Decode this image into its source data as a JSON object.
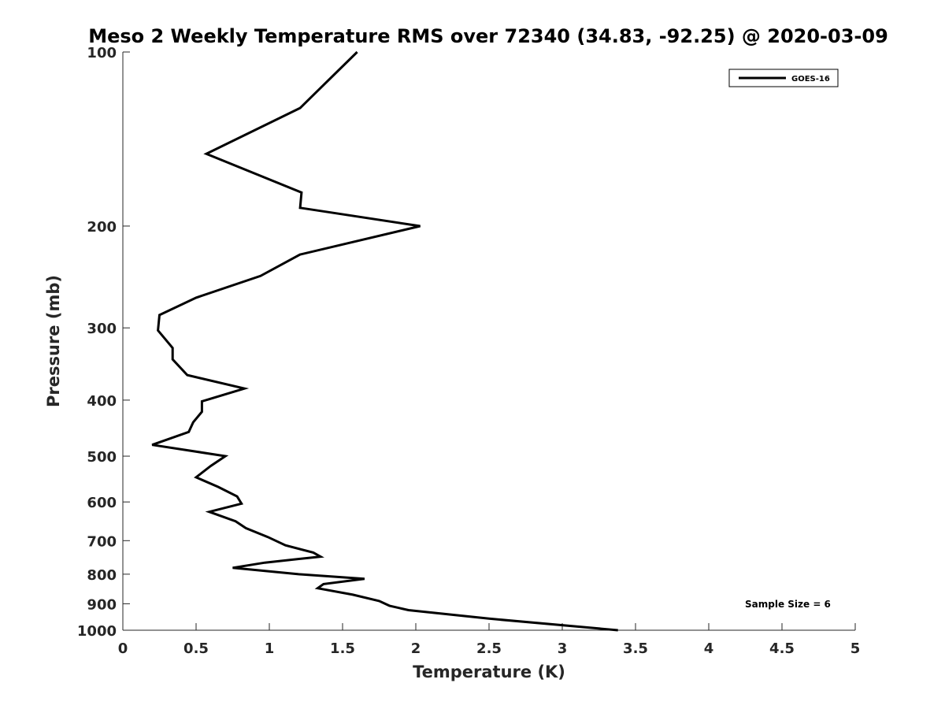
{
  "chart_data": {
    "type": "line",
    "title": "Meso 2 Weekly Temperature RMS over 72340 (34.83, -92.25) @ 2020-03-09",
    "xlabel": "Temperature (K)",
    "ylabel": "Pressure (mb)",
    "xlim": [
      0,
      5
    ],
    "ylim": [
      100,
      1000
    ],
    "y_scale": "log",
    "y_reversed": true,
    "x_ticks": [
      "0",
      "0.5",
      "1",
      "1.5",
      "2",
      "2.5",
      "3",
      "3.5",
      "4",
      "4.5",
      "5"
    ],
    "x_tick_values": [
      0,
      0.5,
      1,
      1.5,
      2,
      2.5,
      3,
      3.5,
      4,
      4.5,
      5
    ],
    "y_ticks": [
      "100",
      "200",
      "300",
      "400",
      "500",
      "600",
      "700",
      "800",
      "900",
      "1000"
    ],
    "y_tick_values": [
      100,
      200,
      300,
      400,
      500,
      600,
      700,
      800,
      900,
      1000
    ],
    "grid": false,
    "legend_position": "top-right",
    "series": [
      {
        "name": "GOES-16",
        "color": "#000000",
        "points": [
          [
            1.6,
            100
          ],
          [
            1.21,
            125
          ],
          [
            0.57,
            150
          ],
          [
            1.22,
            175
          ],
          [
            1.21,
            186
          ],
          [
            2.03,
            200
          ],
          [
            1.21,
            224
          ],
          [
            0.94,
            244
          ],
          [
            0.5,
            266
          ],
          [
            0.25,
            285
          ],
          [
            0.24,
            303
          ],
          [
            0.34,
            325
          ],
          [
            0.34,
            340
          ],
          [
            0.44,
            362
          ],
          [
            0.83,
            382
          ],
          [
            0.54,
            402
          ],
          [
            0.54,
            419
          ],
          [
            0.48,
            437
          ],
          [
            0.45,
            454
          ],
          [
            0.2,
            478
          ],
          [
            0.7,
            500
          ],
          [
            0.6,
            520
          ],
          [
            0.5,
            544
          ],
          [
            0.65,
            565
          ],
          [
            0.78,
            587
          ],
          [
            0.81,
            604
          ],
          [
            0.59,
            624
          ],
          [
            0.77,
            648
          ],
          [
            0.84,
            666
          ],
          [
            0.99,
            690
          ],
          [
            1.11,
            713
          ],
          [
            1.3,
            734
          ],
          [
            1.35,
            746
          ],
          [
            0.97,
            764
          ],
          [
            0.75,
            780
          ],
          [
            1.2,
            800
          ],
          [
            1.65,
            815
          ],
          [
            1.37,
            832
          ],
          [
            1.33,
            846
          ],
          [
            1.57,
            868
          ],
          [
            1.75,
            890
          ],
          [
            1.82,
            907
          ],
          [
            1.95,
            923
          ],
          [
            2.5,
            955
          ],
          [
            3.38,
            1000
          ]
        ]
      }
    ],
    "annotation": "Sample Size = 6"
  }
}
